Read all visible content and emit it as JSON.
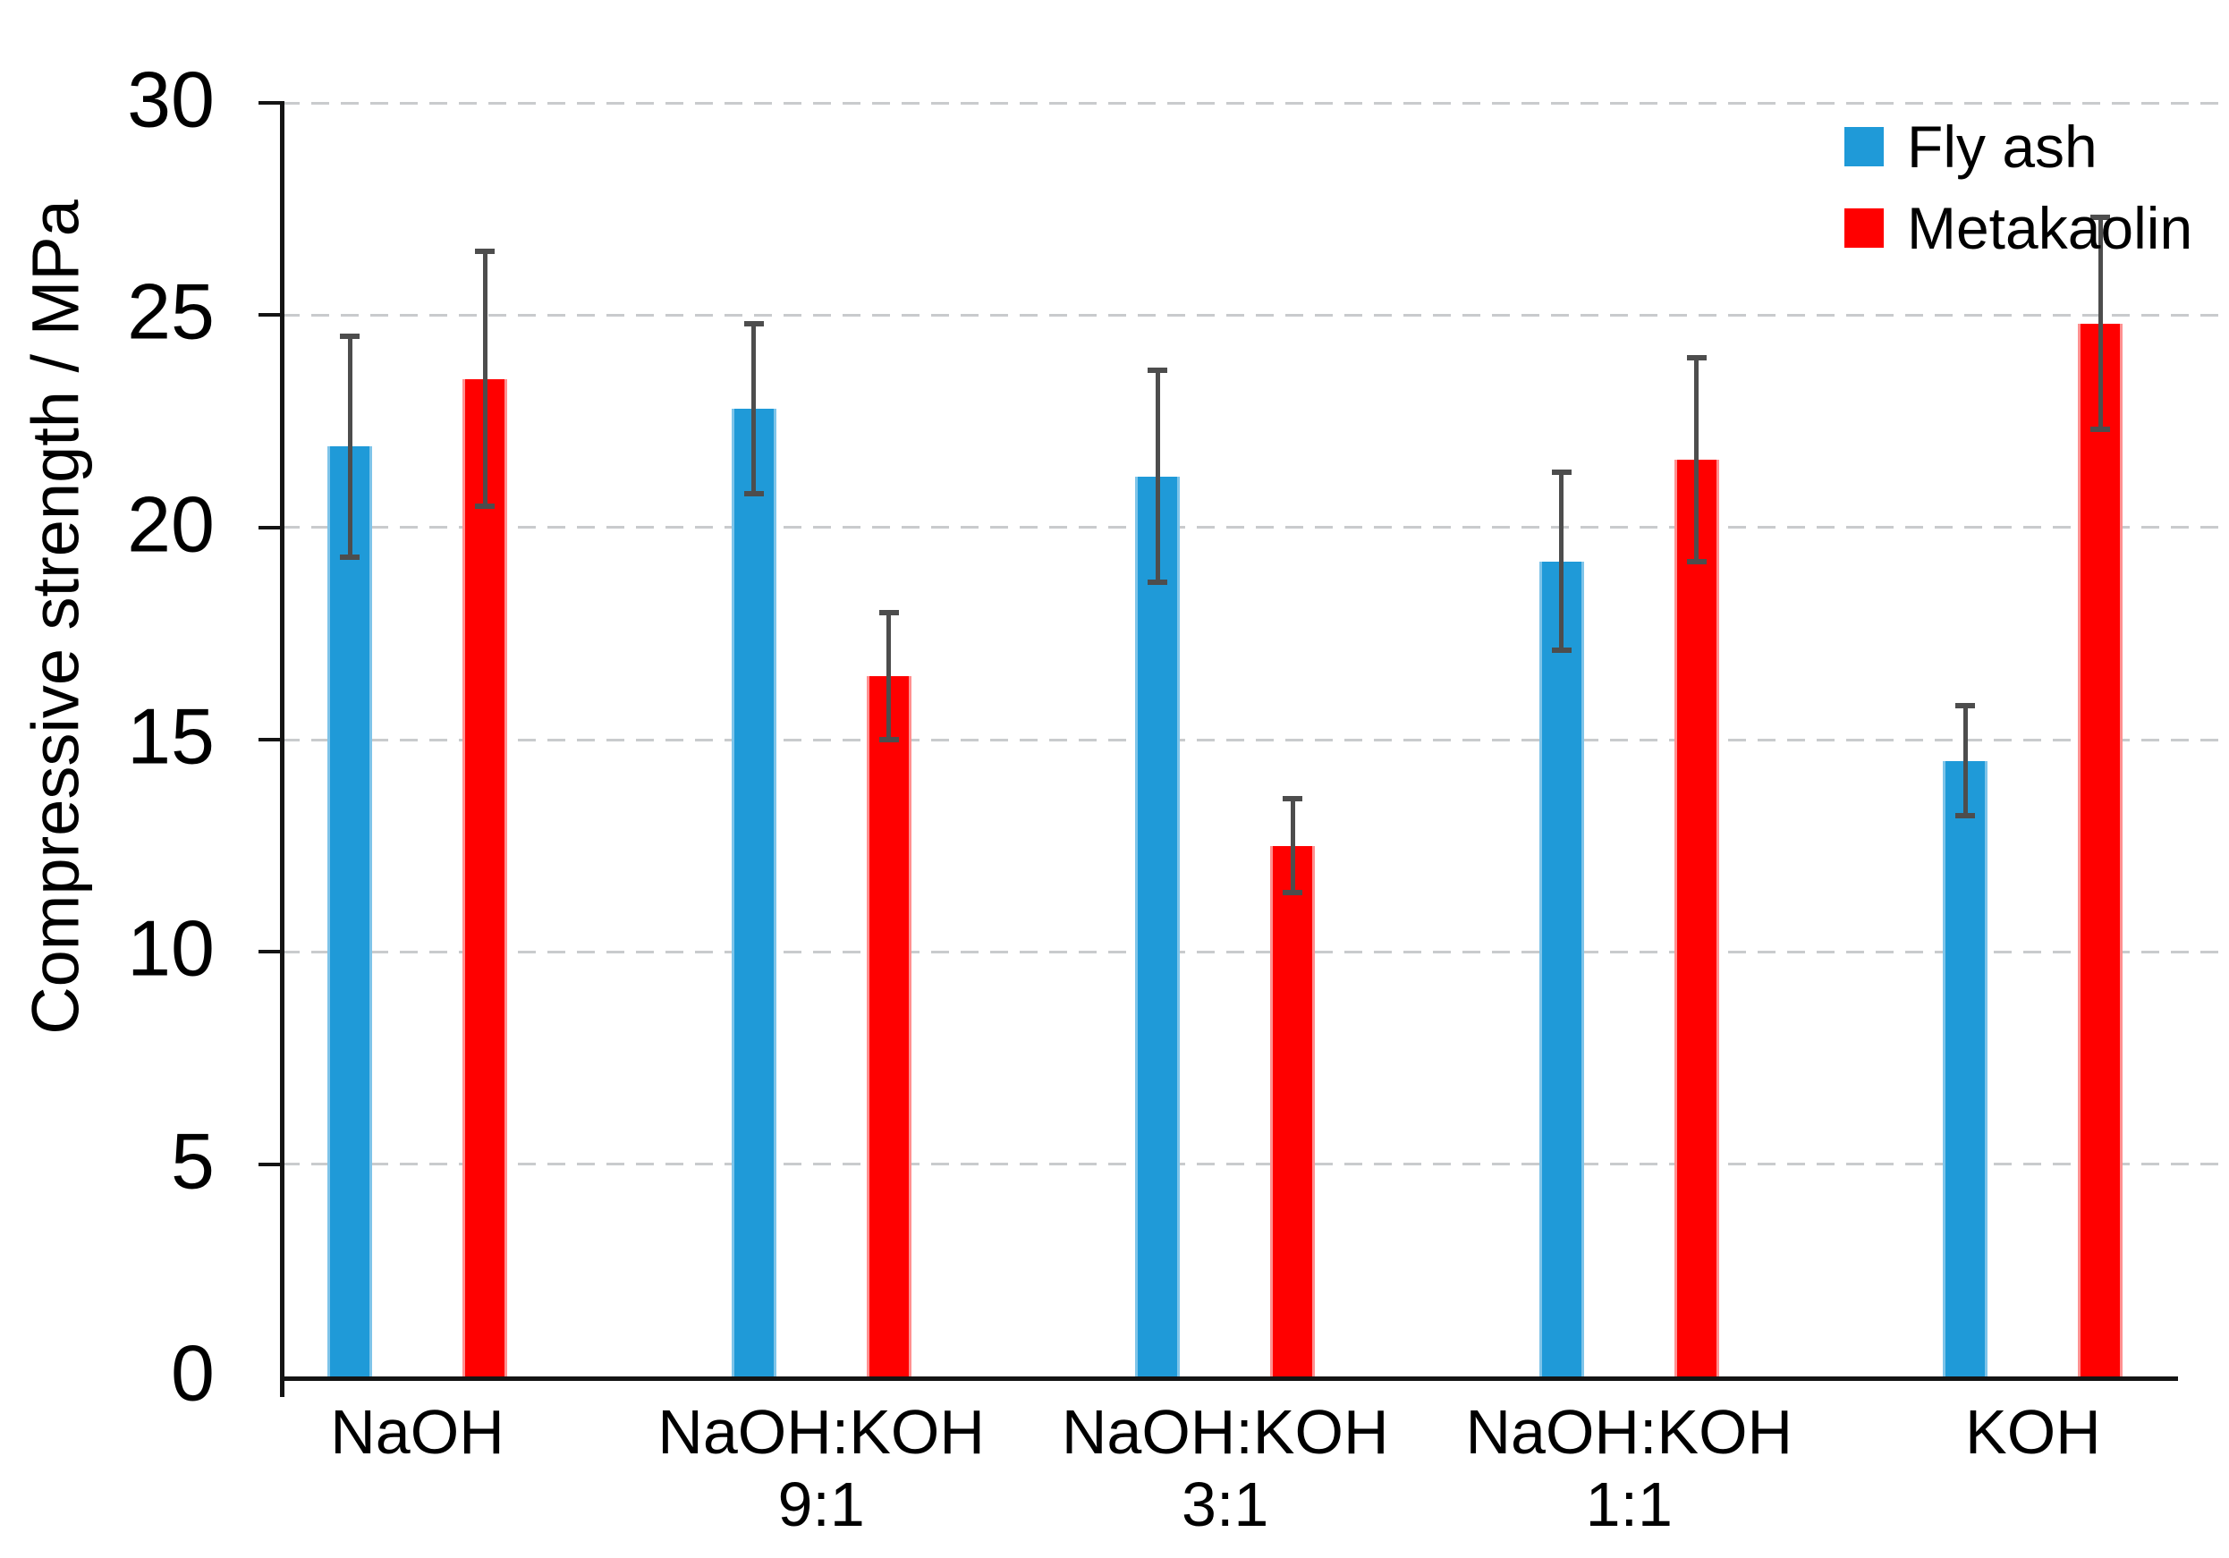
{
  "chart_data": {
    "type": "bar",
    "title": "",
    "xlabel": "",
    "ylabel": "Compressive strength / MPa",
    "ylim": [
      0,
      30
    ],
    "yticks": [
      0,
      5,
      10,
      15,
      20,
      25,
      30
    ],
    "grid": "horizontal dashed gridlines at every 5 MPa, light gray",
    "legend_position": "top-right",
    "error_bars": true,
    "error_bar_color": "#4d4d4d",
    "axis_color": "#141414",
    "gridline_color": "#c9cbcd",
    "categories": [
      {
        "line1": "NaOH",
        "line2": ""
      },
      {
        "line1": "NaOH:KOH",
        "line2": "9:1"
      },
      {
        "line1": "NaOH:KOH",
        "line2": "3:1"
      },
      {
        "line1": "NaOH:KOH",
        "line2": "1:1"
      },
      {
        "line1": "KOH",
        "line2": ""
      }
    ],
    "series": [
      {
        "name": "Fly ash",
        "color": "#1f9ad8",
        "edge_color": "#7ec4e9",
        "values": [
          21.9,
          22.8,
          21.2,
          19.2,
          14.5
        ],
        "error_plus": [
          2.6,
          2.0,
          2.5,
          2.1,
          1.3
        ],
        "error_minus": [
          2.6,
          2.0,
          2.5,
          2.1,
          1.3
        ]
      },
      {
        "name": "Metakaolin",
        "color": "#ff0000",
        "edge_color": "#ff9090",
        "values": [
          23.5,
          16.5,
          12.5,
          21.6,
          24.8
        ],
        "error_plus": [
          3.0,
          1.5,
          1.1,
          2.4,
          2.5
        ],
        "error_minus": [
          3.0,
          1.5,
          1.1,
          2.4,
          2.5
        ]
      }
    ],
    "legend": [
      "Fly ash",
      "Metakaolin"
    ]
  }
}
